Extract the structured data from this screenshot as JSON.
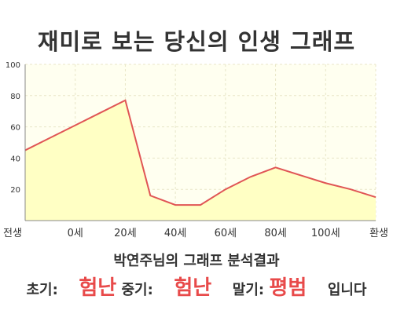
{
  "title": "재미로 보는 당신의 인생 그래프",
  "result": {
    "heading": "박연주님의 그래프 분석결과",
    "early_label": "초기:",
    "early_value": "험난",
    "middle_label": "중기:",
    "middle_value": "험난",
    "late_label": "말기:",
    "late_value": "평범",
    "suffix": "입니다"
  },
  "colors": {
    "line": "#e05555",
    "fill": "#ffffc4",
    "plot_bg": "#fffff0",
    "grid": "#e8e6c8",
    "accent_text": "#e84a4a"
  },
  "chart_data": {
    "type": "area",
    "x": [
      "전생",
      "",
      "0세",
      "",
      "20세",
      "",
      "40세",
      "",
      "60세",
      "",
      "80세",
      "",
      "100세",
      "",
      "환생"
    ],
    "y": [
      45,
      53,
      61,
      69,
      77,
      16,
      10,
      10,
      20,
      28,
      34,
      29,
      24,
      20,
      15
    ],
    "ylim": [
      0,
      100
    ],
    "yticks": [
      20,
      40,
      60,
      80,
      100
    ],
    "grid": true
  }
}
